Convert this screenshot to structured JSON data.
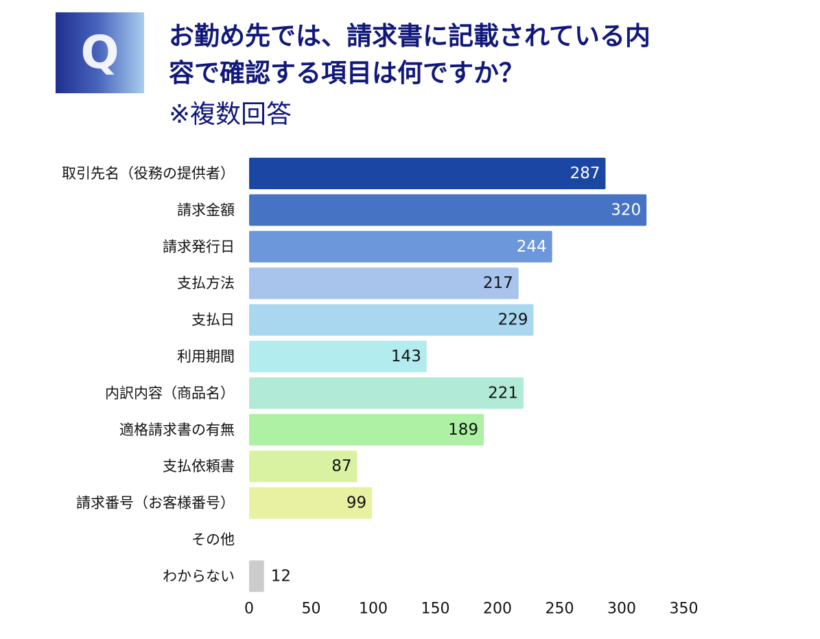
{
  "header": {
    "badge": "Q",
    "question_lines": [
      "お勤め先では、請求書に記載されている内",
      "容で確認する項目は何ですか？"
    ],
    "note": "※複数回答"
  },
  "chart_data": {
    "type": "bar",
    "orientation": "horizontal",
    "categories": [
      "取引先名（役務の提供者）",
      "請求金額",
      "請求発行日",
      "支払方法",
      "支払日",
      "利用期間",
      "内訳内容（商品名）",
      "適格請求書の有無",
      "支払依頼書",
      "請求番号（お客様番号）",
      "その他",
      "わからない"
    ],
    "values": [
      287,
      320,
      244,
      217,
      229,
      143,
      221,
      189,
      87,
      99,
      null,
      12
    ],
    "value_labels": [
      "287",
      "320",
      "244",
      "217",
      "229",
      "143",
      "221",
      "189",
      "87",
      "99",
      "",
      "12"
    ],
    "colors": [
      "#1c46a4",
      "#4673c4",
      "#6d97db",
      "#a8c3ec",
      "#a9d7ef",
      "#b2ecef",
      "#b1ebd7",
      "#aef0a4",
      "#d8f2a2",
      "#e8f0a2",
      "#ffffff",
      "#cccccc"
    ],
    "label_colors": [
      "#ffffff",
      "#ffffff",
      "#ffffff",
      "#111111",
      "#111111",
      "#111111",
      "#111111",
      "#111111",
      "#111111",
      "#111111",
      "#111111",
      "#111111"
    ],
    "label_inside": [
      true,
      true,
      true,
      true,
      true,
      true,
      true,
      true,
      true,
      true,
      true,
      false
    ],
    "x_ticks": [
      0,
      50,
      100,
      150,
      200,
      250,
      300,
      350
    ],
    "x_tick_labels": [
      "0",
      "50",
      "100",
      "150",
      "200",
      "250",
      "300",
      "350"
    ],
    "xlim": [
      0,
      350
    ],
    "grid": false,
    "title": "",
    "xlabel": "",
    "ylabel": ""
  }
}
